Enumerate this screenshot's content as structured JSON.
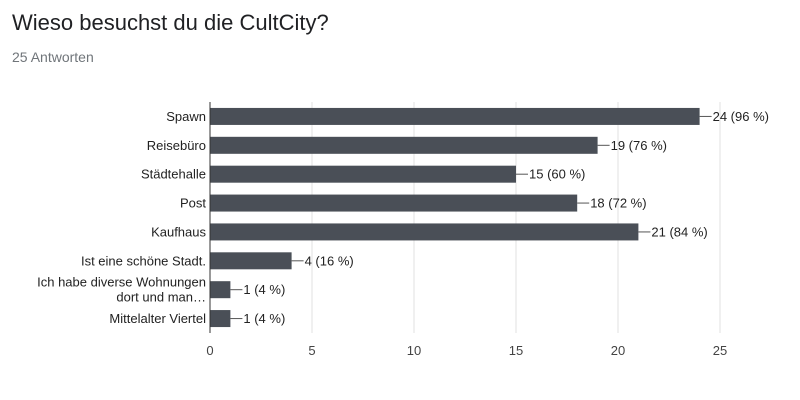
{
  "header": {
    "title": "Wieso besuchst du die CultCity?",
    "subtitle": "25 Antworten"
  },
  "colors": {
    "bar": "#4a4f57",
    "axis": "#333333",
    "grid": "#e0e0e0"
  },
  "chart_data": {
    "type": "bar",
    "orientation": "horizontal",
    "title": "",
    "xlabel": "",
    "ylabel": "",
    "grid": true,
    "xlim": [
      0,
      25
    ],
    "xticks": [
      0,
      5,
      10,
      15,
      20,
      25
    ],
    "categories": [
      [
        "Spawn"
      ],
      [
        "Reisebüro"
      ],
      [
        "Städtehalle"
      ],
      [
        "Post"
      ],
      [
        "Kaufhaus"
      ],
      [
        "Ist eine schöne Stadt."
      ],
      [
        "Ich habe diverse Wohnungen",
        "dort und man…"
      ],
      [
        "Mittelalter Viertel"
      ]
    ],
    "values": [
      24,
      19,
      15,
      18,
      21,
      4,
      1,
      1
    ],
    "data_labels": [
      "24 (96 %)",
      "19 (76 %)",
      "15 (60 %)",
      "18 (72 %)",
      "21 (84 %)",
      "4 (16 %)",
      "1 (4 %)",
      "1 (4 %)"
    ]
  }
}
